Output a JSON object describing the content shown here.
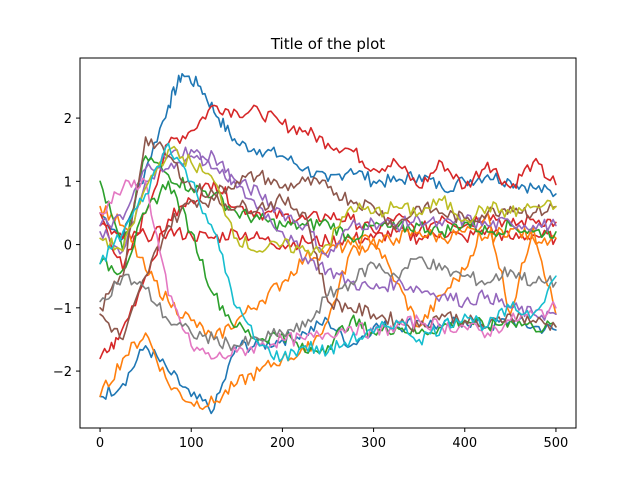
{
  "chart_data": {
    "type": "line",
    "title": "Title of the plot",
    "xlabel": "",
    "ylabel": "",
    "xlim": [
      -22,
      522
    ],
    "ylim": [
      -2.9,
      2.95
    ],
    "x_ticks": [
      0,
      100,
      200,
      300,
      400,
      500
    ],
    "y_ticks": [
      -2,
      -1,
      0,
      1,
      2
    ],
    "y_tick_labels": [
      "−2",
      "−1",
      "0",
      "1",
      "2"
    ],
    "grid": false,
    "legend": "none",
    "series": [
      {
        "color": "#1f77b4",
        "x": [
          0,
          25,
          50,
          75,
          90,
          110,
          130,
          150,
          175,
          200,
          225,
          250,
          275,
          300,
          325,
          350,
          375,
          400,
          425,
          450,
          475,
          500
        ],
        "values": [
          0.5,
          0.1,
          1.2,
          2.2,
          2.7,
          2.5,
          2.0,
          1.6,
          1.5,
          1.4,
          1.2,
          1.0,
          1.2,
          1.0,
          1.0,
          1.1,
          0.9,
          1.0,
          1.1,
          1.0,
          0.9,
          0.8
        ]
      },
      {
        "color": "#1f77b4",
        "x": [
          0,
          25,
          50,
          75,
          100,
          125,
          150,
          175,
          200,
          225,
          250,
          275,
          300,
          325,
          350,
          375,
          400,
          425,
          450,
          475,
          500
        ],
        "values": [
          -2.4,
          -2.2,
          -1.6,
          -2.0,
          -2.4,
          -2.6,
          -1.6,
          -1.6,
          -1.5,
          -1.4,
          -1.2,
          -1.6,
          -1.3,
          -1.3,
          -1.2,
          -1.3,
          -1.2,
          -1.3,
          -1.2,
          -1.3,
          -1.35
        ]
      },
      {
        "color": "#d62728",
        "x": [
          0,
          25,
          50,
          75,
          100,
          125,
          150,
          175,
          200,
          225,
          250,
          275,
          300,
          325,
          350,
          375,
          400,
          425,
          450,
          475,
          500
        ],
        "values": [
          0.5,
          -0.4,
          0.5,
          1.6,
          1.8,
          2.2,
          2.1,
          2.1,
          1.9,
          1.8,
          1.6,
          1.5,
          1.2,
          1.3,
          0.9,
          1.3,
          0.9,
          1.3,
          0.9,
          1.3,
          0.95
        ]
      },
      {
        "color": "#d62728",
        "x": [
          0,
          20,
          50,
          75,
          100,
          125,
          150,
          175,
          200,
          225,
          250,
          275,
          300,
          325,
          350,
          375,
          400,
          425,
          450,
          475,
          500
        ],
        "values": [
          -1.8,
          -1.5,
          -0.5,
          0.4,
          0.7,
          1.0,
          0.6,
          0.5,
          0.45,
          0.4,
          0.45,
          0.4,
          0.2,
          0.45,
          0.2,
          0.45,
          0.3,
          0.5,
          0.3,
          0.4,
          0.35
        ]
      },
      {
        "color": "#d62728",
        "x": [
          0,
          25,
          50,
          75,
          100,
          125,
          150,
          175,
          200,
          225,
          250,
          275,
          300,
          325,
          350,
          375,
          400,
          425,
          450,
          475,
          500
        ],
        "values": [
          0.3,
          0.1,
          0.15,
          0.2,
          0.15,
          0.1,
          0.2,
          0.1,
          0.0,
          0.05,
          0.05,
          0.1,
          0.1,
          0.2,
          0.1,
          0.2,
          0.1,
          0.25,
          0.1,
          0.15,
          0.1
        ]
      },
      {
        "color": "#ff7f0e",
        "x": [
          0,
          25,
          50,
          75,
          100,
          125,
          150,
          175,
          200,
          225,
          250,
          275,
          300,
          325,
          350,
          375,
          400,
          425,
          450,
          475,
          500
        ],
        "values": [
          -2.4,
          -1.8,
          -1.4,
          -2.2,
          -2.5,
          -2.5,
          -2.2,
          -2.0,
          -1.8,
          -1.7,
          -1.2,
          -0.1,
          0.0,
          0.1,
          0.2,
          0.1,
          0.2,
          0.1,
          0.25,
          0.1,
          0.1
        ]
      },
      {
        "color": "#ff7f0e",
        "x": [
          0,
          25,
          50,
          75,
          100,
          125,
          150,
          175,
          200,
          225,
          250,
          275,
          300,
          325,
          350,
          375,
          400,
          425,
          450,
          475,
          500
        ],
        "values": [
          0.6,
          0.3,
          -0.4,
          -0.9,
          -1.2,
          -1.5,
          -1.2,
          -0.9,
          -0.6,
          -0.2,
          -0.1,
          0.0,
          0.1,
          -0.6,
          -1.3,
          -0.8,
          -0.4,
          0.5,
          -1.1,
          0.3,
          -1.1
        ]
      },
      {
        "color": "#2ca02c",
        "x": [
          0,
          25,
          50,
          75,
          100,
          125,
          150,
          175,
          200,
          225,
          250,
          275,
          300,
          325,
          350,
          375,
          400,
          425,
          450,
          475,
          500
        ],
        "values": [
          1.0,
          -0.1,
          1.4,
          1.1,
          0.9,
          0.8,
          0.5,
          0.4,
          0.3,
          0.3,
          0.35,
          0.1,
          0.3,
          0.25,
          0.3,
          0.2,
          0.35,
          0.2,
          0.3,
          0.2,
          0.2
        ]
      },
      {
        "color": "#2ca02c",
        "x": [
          0,
          25,
          50,
          75,
          100,
          125,
          150,
          175,
          200,
          225,
          250,
          275,
          300,
          325,
          350,
          375,
          400,
          425,
          450,
          475,
          500
        ],
        "values": [
          -0.3,
          -0.4,
          0.5,
          1.0,
          0.2,
          -0.8,
          -1.3,
          -1.5,
          -1.4,
          -1.7,
          -1.6,
          -1.2,
          -1.4,
          -1.3,
          -1.4,
          -1.3,
          -1.2,
          -1.3,
          -1.2,
          -1.3,
          -1.3
        ]
      },
      {
        "color": "#9467bd",
        "x": [
          0,
          25,
          50,
          75,
          100,
          125,
          150,
          175,
          200,
          225,
          250,
          275,
          300,
          325,
          350,
          375,
          400,
          425,
          450,
          475,
          500
        ],
        "values": [
          0.2,
          -0.1,
          1.0,
          1.2,
          1.4,
          1.4,
          0.9,
          0.6,
          0.2,
          -0.2,
          -0.4,
          -0.6,
          -0.7,
          -0.6,
          -0.7,
          -0.8,
          -0.9,
          -0.8,
          -1.0,
          -1.1,
          -1.1
        ]
      },
      {
        "color": "#9467bd",
        "x": [
          0,
          25,
          50,
          75,
          100,
          125,
          150,
          175,
          200,
          225,
          250,
          275,
          300,
          325,
          350,
          375,
          400,
          425,
          450,
          475,
          500
        ],
        "values": [
          0.3,
          0.4,
          1.2,
          1.4,
          1.5,
          1.2,
          1.0,
          0.8,
          0.5,
          0.3,
          -0.2,
          0.3,
          0.35,
          0.3,
          0.4,
          0.3,
          0.4,
          0.3,
          0.35,
          0.3,
          0.3
        ]
      },
      {
        "color": "#8c564b",
        "x": [
          0,
          25,
          50,
          75,
          100,
          125,
          150,
          175,
          200,
          225,
          250,
          275,
          300,
          325,
          350,
          375,
          400,
          425,
          450,
          475,
          500
        ],
        "values": [
          -1.0,
          -0.5,
          1.7,
          1.4,
          0.9,
          0.8,
          1.0,
          1.1,
          0.9,
          1.0,
          0.9,
          0.7,
          0.6,
          0.3,
          0.6,
          0.5,
          0.4,
          0.5,
          0.6,
          0.5,
          0.6
        ]
      },
      {
        "color": "#8c564b",
        "x": [
          0,
          25,
          50,
          75,
          100,
          125,
          150,
          175,
          200,
          225,
          250,
          275,
          300,
          325,
          350,
          375,
          400,
          425,
          450,
          475,
          500
        ],
        "values": [
          -1.1,
          -1.5,
          -0.5,
          0.3,
          0.7,
          0.7,
          0.6,
          0.6,
          0.7,
          0.5,
          -0.9,
          -1.0,
          -1.1,
          -1.2,
          -1.3,
          -1.1,
          -1.2,
          -1.3,
          -1.1,
          -1.2,
          -1.3
        ]
      },
      {
        "color": "#e377c2",
        "x": [
          0,
          25,
          50,
          75,
          100,
          125,
          150,
          175,
          200,
          225,
          250,
          275,
          300,
          325,
          350,
          375,
          400,
          425,
          450,
          475,
          500
        ],
        "values": [
          0.5,
          0.9,
          1.0,
          -0.8,
          -1.6,
          -1.8,
          -1.7,
          -1.6,
          -1.5,
          -1.5,
          -1.4,
          -1.3,
          -1.4,
          -1.3,
          -1.2,
          -1.3,
          -1.3,
          -1.4,
          -1.2,
          -1.1,
          -1.0
        ]
      },
      {
        "color": "#7f7f7f",
        "x": [
          0,
          25,
          50,
          75,
          100,
          125,
          150,
          175,
          200,
          225,
          250,
          275,
          300,
          325,
          350,
          375,
          400,
          425,
          450,
          475,
          500
        ],
        "values": [
          -0.9,
          -0.5,
          -0.7,
          -1.2,
          -1.4,
          -1.5,
          -1.6,
          -1.5,
          -1.4,
          -1.3,
          -0.8,
          -0.6,
          -0.3,
          -0.5,
          -0.2,
          -0.4,
          -0.5,
          -0.6,
          -0.4,
          -0.6,
          -0.6
        ]
      },
      {
        "color": "#bcbd22",
        "x": [
          0,
          25,
          50,
          75,
          100,
          125,
          150,
          175,
          200,
          225,
          250,
          275,
          300,
          325,
          350,
          375,
          400,
          425,
          450,
          475,
          500
        ],
        "values": [
          0.1,
          -0.1,
          0.9,
          1.5,
          1.3,
          1.0,
          0.1,
          -0.1,
          0.0,
          -0.1,
          0.0,
          0.6,
          0.5,
          0.6,
          0.5,
          0.7,
          0.4,
          0.6,
          0.5,
          0.6,
          0.6
        ]
      },
      {
        "color": "#17becf",
        "x": [
          0,
          25,
          50,
          75,
          100,
          125,
          150,
          175,
          200,
          225,
          250,
          275,
          300,
          325,
          350,
          375,
          400,
          425,
          450,
          475,
          500
        ],
        "values": [
          -0.3,
          0.2,
          0.8,
          1.6,
          1.0,
          0.2,
          -1.0,
          -1.6,
          -1.8,
          -1.6,
          -1.7,
          -1.5,
          -1.4,
          -1.2,
          -1.5,
          -1.3,
          -1.1,
          -1.3,
          -1.0,
          -1.1,
          -0.5
        ]
      }
    ]
  }
}
